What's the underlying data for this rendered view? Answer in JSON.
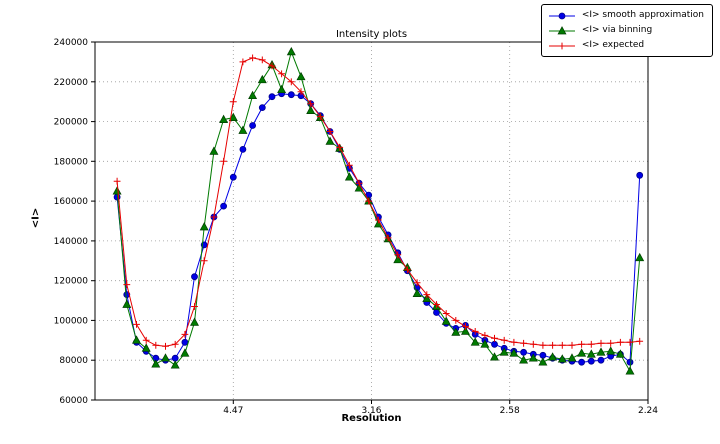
{
  "title": "Intensity plots",
  "axes": {
    "xlabel": "Resolution",
    "ylabel": "<I>",
    "xlim": [
      0.0,
      0.2
    ],
    "ylim": [
      60000,
      240000
    ],
    "x_ticks": [
      {
        "value": 0.05,
        "label": "4.47"
      },
      {
        "value": 0.1,
        "label": "3.16"
      },
      {
        "value": 0.15,
        "label": "2.58"
      },
      {
        "value": 0.2,
        "label": "2.24"
      }
    ],
    "y_ticks": [
      60000,
      80000,
      100000,
      120000,
      140000,
      160000,
      180000,
      200000,
      220000,
      240000
    ],
    "grid": "dotted"
  },
  "chart_data": {
    "type": "line",
    "title": "Intensity plots",
    "xlabel": "Resolution",
    "ylabel": "<I>",
    "legend_position": "upper right (outside top of axes)",
    "x_axis_note": "x values are 1/d^2; tick labels show resolution d in Angstrom",
    "x": [
      0.008,
      0.0115,
      0.015,
      0.0185,
      0.022,
      0.0255,
      0.029,
      0.0325,
      0.036,
      0.0395,
      0.043,
      0.0465,
      0.05,
      0.0535,
      0.057,
      0.0605,
      0.064,
      0.0675,
      0.071,
      0.0745,
      0.078,
      0.0815,
      0.085,
      0.0885,
      0.092,
      0.0955,
      0.099,
      0.1025,
      0.106,
      0.1095,
      0.113,
      0.1165,
      0.12,
      0.1235,
      0.127,
      0.1305,
      0.134,
      0.1375,
      0.141,
      0.1445,
      0.148,
      0.1515,
      0.155,
      0.1585,
      0.162,
      0.1655,
      0.169,
      0.1725,
      0.176,
      0.1795,
      0.183,
      0.1865,
      0.19,
      0.1935,
      0.197
    ],
    "series": [
      {
        "name": "<I> smooth approximation",
        "color": "#0000e6",
        "edge": "#00008b",
        "marker": "circle",
        "values": [
          162000,
          113000,
          89000,
          84500,
          81000,
          80000,
          81000,
          89000,
          122000,
          138000,
          152000,
          157500,
          172000,
          186000,
          198000,
          207000,
          212500,
          214000,
          213500,
          213000,
          209000,
          203000,
          195000,
          186000,
          176500,
          169000,
          163000,
          152000,
          143000,
          134000,
          125000,
          116500,
          109000,
          104000,
          98500,
          96000,
          97500,
          93000,
          90000,
          88000,
          86000,
          84500,
          84000,
          83000,
          82500,
          81000,
          80000,
          79500,
          79000,
          79500,
          80000,
          82000,
          83000,
          79000,
          173000
        ]
      },
      {
        "name": "<I> via binning",
        "color": "#007a00",
        "edge": "#003c00",
        "marker": "triangle",
        "values": [
          165000,
          108000,
          90000,
          86000,
          78000,
          81000,
          77500,
          83500,
          99000,
          147000,
          185000,
          201000,
          202000,
          195500,
          213000,
          221000,
          228500,
          216000,
          235000,
          222500,
          205500,
          202000,
          190000,
          186500,
          172000,
          166500,
          160000,
          148500,
          141000,
          130500,
          126500,
          113500,
          111000,
          107000,
          99500,
          94000,
          94500,
          89000,
          88000,
          81500,
          84000,
          83500,
          80000,
          81000,
          79000,
          81500,
          80500,
          81000,
          83500,
          83000,
          84000,
          84500,
          83000,
          74500,
          131500
        ]
      },
      {
        "name": "<I> expected",
        "color": "#e60000",
        "edge": "#e60000",
        "marker": "plus",
        "values": [
          170000,
          118000,
          98000,
          90000,
          87500,
          87000,
          88000,
          93000,
          107000,
          130000,
          152000,
          180000,
          210000,
          230000,
          232000,
          231000,
          228000,
          224000,
          220000,
          215000,
          209000,
          202500,
          195000,
          187000,
          178000,
          169000,
          160000,
          150500,
          141500,
          133000,
          125500,
          119000,
          113000,
          108000,
          103500,
          100000,
          97000,
          94500,
          92500,
          91000,
          90000,
          89000,
          88500,
          88000,
          87500,
          87500,
          87500,
          87500,
          88000,
          88000,
          88500,
          88500,
          89000,
          89000,
          89500
        ]
      }
    ]
  }
}
